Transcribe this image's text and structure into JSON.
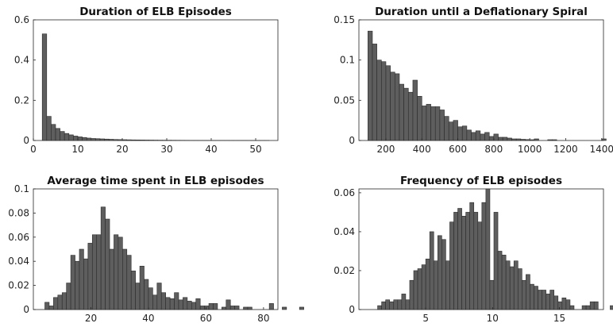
{
  "chart_data": [
    {
      "type": "bar",
      "title": "Duration of ELB Episodes",
      "xlim": [
        0,
        55
      ],
      "ylim": [
        0,
        0.6
      ],
      "xticks": [
        0,
        10,
        20,
        30,
        40,
        50
      ],
      "yticks": [
        0,
        0.2,
        0.4,
        0.6
      ],
      "xticklabels": [
        "0",
        "10",
        "20",
        "30",
        "40",
        "50"
      ],
      "yticklabels": [
        "0",
        "0.2",
        "0.4",
        "0.6"
      ],
      "bin_start": 2,
      "bin_width": 1,
      "values": [
        0.53,
        0.12,
        0.08,
        0.06,
        0.045,
        0.035,
        0.028,
        0.022,
        0.018,
        0.015,
        0.012,
        0.01,
        0.009,
        0.008,
        0.007,
        0.006,
        0.005,
        0.0045,
        0.004,
        0.0035,
        0.003,
        0.0028,
        0.0025,
        0.0022,
        0.002,
        0.0018,
        0.0016,
        0.0015,
        0.0014,
        0.0012,
        0.0011,
        0.001,
        0.0009,
        0.0008,
        0.0008,
        0.0007,
        0.0006,
        0.0006,
        0.0005,
        0.0005,
        0.0004,
        0.0004,
        0.0003,
        0.0003,
        0.0003,
        0.0002,
        0.0002,
        0.0002,
        0.0001,
        0.0001,
        0.0001
      ]
    },
    {
      "type": "bar",
      "title": "Duration until a Deflationary Spiral",
      "xlim": [
        50,
        1410
      ],
      "ylim": [
        0,
        0.15
      ],
      "xticks": [
        200,
        400,
        600,
        800,
        1000,
        1200,
        1400
      ],
      "yticks": [
        0,
        0.05,
        0.1,
        0.15
      ],
      "xticklabels": [
        "200",
        "400",
        "600",
        "800",
        "1000",
        "1200",
        "1400"
      ],
      "yticklabels": [
        "0",
        "0.05",
        "0.1",
        "0.15"
      ],
      "bin_start": 100,
      "bin_width": 25,
      "values": [
        0.136,
        0.12,
        0.1,
        0.098,
        0.093,
        0.085,
        0.083,
        0.07,
        0.065,
        0.06,
        0.075,
        0.055,
        0.043,
        0.045,
        0.042,
        0.042,
        0.038,
        0.03,
        0.023,
        0.025,
        0.017,
        0.018,
        0.013,
        0.01,
        0.012,
        0.008,
        0.01,
        0.005,
        0.008,
        0.004,
        0.004,
        0.003,
        0.002,
        0.002,
        0.0015,
        0.0012,
        0.001,
        0.002,
        0,
        0,
        0.001,
        0.001,
        0,
        0,
        0,
        0,
        0,
        0,
        0,
        0,
        0,
        0,
        0.002
      ]
    },
    {
      "type": "bar",
      "title": "Average time spent in ELB episodes",
      "xlim": [
        0,
        85
      ],
      "ylim": [
        0,
        0.1
      ],
      "xticks": [
        20,
        40,
        60,
        80
      ],
      "yticks": [
        0,
        0.02,
        0.04,
        0.06,
        0.08,
        0.1
      ],
      "xticklabels": [
        "20",
        "40",
        "60",
        "80"
      ],
      "yticklabels": [
        "0",
        "0.02",
        "0.04",
        "0.06",
        "0.08",
        "0.1"
      ],
      "bin_start": 4,
      "bin_width": 1.5,
      "values": [
        0.006,
        0.003,
        0.01,
        0.012,
        0.014,
        0.022,
        0.045,
        0.04,
        0.05,
        0.042,
        0.055,
        0.062,
        0.062,
        0.085,
        0.075,
        0.05,
        0.062,
        0.06,
        0.05,
        0.045,
        0.032,
        0.022,
        0.036,
        0.025,
        0.018,
        0.012,
        0.022,
        0.014,
        0.01,
        0.009,
        0.014,
        0.008,
        0.01,
        0.007,
        0.006,
        0.009,
        0.003,
        0.003,
        0.005,
        0.005,
        0,
        0.002,
        0.008,
        0.003,
        0.003,
        0,
        0.002,
        0.002,
        0,
        0,
        0,
        0,
        0.005,
        0,
        0,
        0.002,
        0,
        0,
        0,
        0.002
      ]
    },
    {
      "type": "bar",
      "title": "Frequency of ELB episodes",
      "xlim": [
        0,
        18.3
      ],
      "ylim": [
        0,
        0.062
      ],
      "xticks": [
        5,
        10,
        15
      ],
      "yticks": [
        0,
        0.02,
        0.04,
        0.06
      ],
      "xticklabels": [
        "5",
        "10",
        "15"
      ],
      "yticklabels": [
        "0",
        "0.02",
        "0.04",
        "0.06"
      ],
      "bin_start": 1.4,
      "bin_width": 0.3,
      "values": [
        0.002,
        0.004,
        0.005,
        0.004,
        0.005,
        0.005,
        0.008,
        0.005,
        0.015,
        0.02,
        0.021,
        0.023,
        0.026,
        0.04,
        0.025,
        0.038,
        0.036,
        0.025,
        0.045,
        0.05,
        0.052,
        0.048,
        0.05,
        0.055,
        0.05,
        0.045,
        0.055,
        0.062,
        0.015,
        0.05,
        0.03,
        0.028,
        0.025,
        0.022,
        0.025,
        0.021,
        0.015,
        0.018,
        0.013,
        0.012,
        0.01,
        0.01,
        0.008,
        0.01,
        0.007,
        0.004,
        0.006,
        0.005,
        0.002,
        0,
        0,
        0.002,
        0.002,
        0.004,
        0.004,
        0,
        0,
        0,
        0.002,
        0,
        0.002
      ]
    }
  ]
}
